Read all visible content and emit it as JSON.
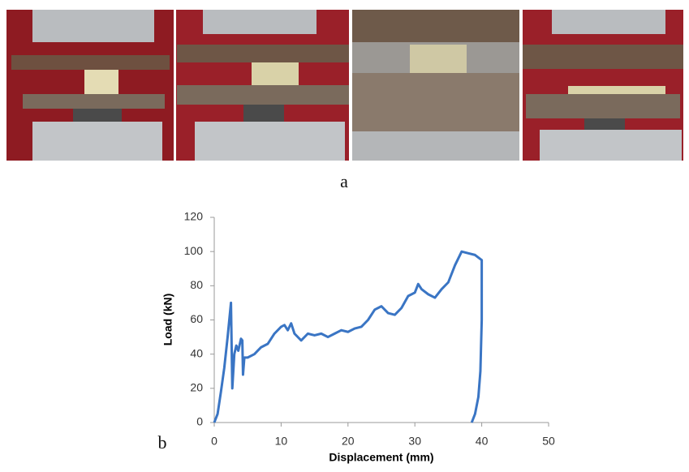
{
  "panel_labels": [
    "a",
    "b"
  ],
  "chart_data": {
    "type": "line",
    "xlabel": "Displacement (mm)",
    "ylabel": "Load (kN)",
    "xlim": [
      0,
      50
    ],
    "ylim": [
      0,
      120
    ],
    "xticks": [
      0,
      10,
      20,
      30,
      40,
      50
    ],
    "yticks": [
      0,
      20,
      40,
      60,
      80,
      100,
      120
    ],
    "series": [
      {
        "color": "#3a75c4",
        "x": [
          0,
          0.5,
          1,
          1.5,
          2,
          2.5,
          2.7,
          3,
          3.3,
          3.6,
          4,
          4.2,
          4.3,
          4.5,
          5,
          6,
          7,
          8,
          9,
          10,
          10.5,
          11,
          11.5,
          12,
          13,
          14,
          15,
          16,
          17,
          18,
          19,
          20,
          21,
          22,
          23,
          24,
          25,
          26,
          27,
          28,
          29,
          30,
          30.5,
          31,
          32,
          33,
          34,
          35,
          36,
          37,
          38,
          39,
          40,
          40,
          39.8,
          39.5,
          39,
          38.5
        ],
        "values": [
          0,
          5,
          18,
          32,
          50,
          70,
          20,
          40,
          45,
          42,
          49,
          48,
          28,
          38,
          38,
          40,
          44,
          46,
          52,
          56,
          57,
          54,
          58,
          52,
          48,
          52,
          51,
          52,
          50,
          52,
          54,
          53,
          55,
          56,
          60,
          66,
          68,
          64,
          63,
          67,
          74,
          76,
          81,
          78,
          75,
          73,
          78,
          82,
          92,
          100,
          99,
          98,
          95,
          60,
          30,
          15,
          5,
          0
        ]
      }
    ]
  }
}
